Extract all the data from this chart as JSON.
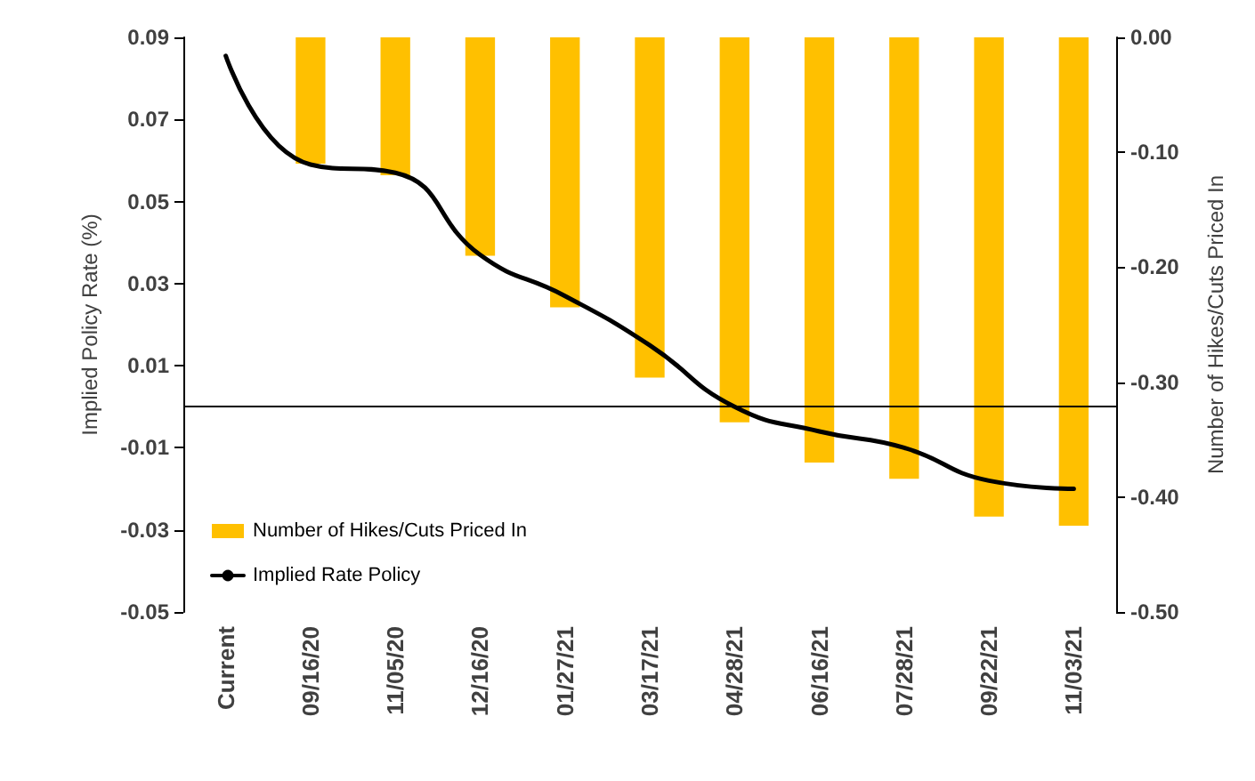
{
  "chart_data": {
    "type": "bar",
    "categories": [
      "Current",
      "09/16/20",
      "11/05/20",
      "12/16/20",
      "01/27/21",
      "03/17/21",
      "04/28/21",
      "06/16/21",
      "07/28/21",
      "09/22/21",
      "11/03/21"
    ],
    "series": [
      {
        "name": "Number of Hikes/Cuts Priced In",
        "axis": "y2",
        "color": "#ffc000",
        "values": [
          null,
          -0.11,
          -0.12,
          -0.19,
          -0.235,
          -0.296,
          -0.335,
          -0.37,
          -0.384,
          -0.417,
          -0.425
        ]
      },
      {
        "name": "Implied Rate Policy",
        "type": "line",
        "color": "#000000",
        "values": [
          0.0855,
          0.059,
          0.057,
          0.037,
          0.027,
          0.015,
          0.0,
          -0.006,
          -0.01,
          -0.018,
          -0.02
        ]
      }
    ],
    "ylabel": "Implied Policy Rate (%)",
    "y2label": "Number of Hikes/Cuts Priced In",
    "ylim": [
      -0.05,
      0.09
    ],
    "yticks": [
      -0.05,
      -0.03,
      -0.01,
      0.01,
      0.03,
      0.05,
      0.07,
      0.09
    ],
    "y2lim": [
      -0.5,
      0
    ],
    "y2ticks": [
      {
        "value": -0.5,
        "label": "-0.50"
      },
      {
        "value": -0.4,
        "label": "-0.40"
      },
      {
        "value": -0.3,
        "label": "-0.30"
      },
      {
        "value": -0.2,
        "label": "-0.20"
      },
      {
        "value": -0.1,
        "label": "-0.10"
      },
      {
        "value": 0,
        "label": "0.00"
      }
    ],
    "ref_lines": [
      {
        "axis": "y",
        "value": 0,
        "color": "#000000"
      }
    ],
    "legend": "bottom left",
    "grid": false,
    "marker": "none",
    "line_style": "solid"
  }
}
